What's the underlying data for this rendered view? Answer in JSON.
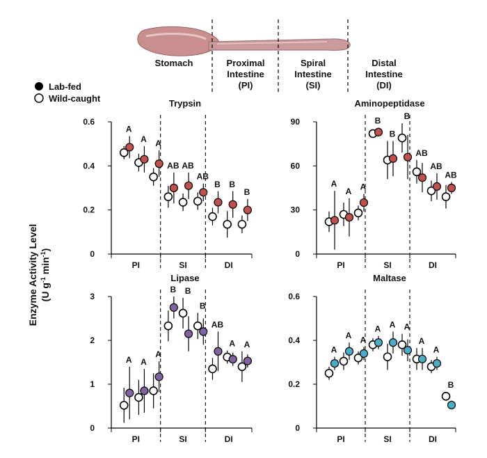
{
  "legend": {
    "lab_fed": "Lab-fed",
    "wild_caught": "Wild-caught"
  },
  "regions": {
    "stomach": "Stomach",
    "pi": [
      "Proximal",
      "Intestine",
      "(PI)"
    ],
    "si": [
      "Spiral",
      "Intestine",
      "(SI)"
    ],
    "di": [
      "Distal",
      "Intestine",
      "(DI)"
    ]
  },
  "ylabel": {
    "line1": "Enzyme Activity Level",
    "line2_main": "(U g",
    "line2_exp1": "-1",
    "line2_mid": " min",
    "line2_exp2": "-1",
    "line2_end": ")"
  },
  "colors": {
    "trypsin": "#c0504d",
    "aminopeptidase": "#c0504d",
    "lipase": "#8064a2",
    "maltase": "#4bacc6",
    "wild": "#ffffff",
    "stroke": "#000000"
  },
  "chart_data": [
    {
      "type": "scatter",
      "title": "Trypsin",
      "groups": [
        "PI",
        "SI",
        "DI"
      ],
      "ylim": [
        0,
        0.6
      ],
      "yticks": [
        "0",
        "0.2",
        "0.4",
        "0.6"
      ],
      "series": [
        {
          "name": "Lab-fed",
          "values": [
            0.485,
            0.43,
            0.41,
            0.3,
            0.31,
            0.28,
            0.235,
            0.225,
            0.2
          ],
          "err": [
            0.05,
            0.06,
            0.06,
            0.07,
            0.06,
            0.04,
            0.05,
            0.06,
            0.05
          ]
        },
        {
          "name": "Wild-caught",
          "values": [
            0.46,
            0.415,
            0.35,
            0.26,
            0.235,
            0.24,
            0.17,
            0.135,
            0.135
          ],
          "err": [
            0.03,
            0.04,
            0.04,
            0.05,
            0.04,
            0.04,
            0.04,
            0.06,
            0.04
          ]
        }
      ],
      "letters": [
        "A",
        "A",
        "A",
        "AB",
        "AB",
        "AB",
        "B",
        "B",
        "B"
      ]
    },
    {
      "type": "scatter",
      "title": "Aminopeptidase",
      "groups": [
        "PI",
        "SI",
        "DI"
      ],
      "ylim": [
        0,
        90
      ],
      "yticks": [
        "0",
        "30",
        "60",
        "90"
      ],
      "series": [
        {
          "name": "Lab-fed",
          "values": [
            23,
            25,
            35,
            83,
            65,
            66,
            52,
            46,
            45
          ],
          "err": [
            20,
            13,
            6,
            3,
            12,
            15,
            10,
            9,
            4
          ]
        },
        {
          "name": "Wild-caught",
          "values": [
            22,
            27,
            28,
            82,
            64,
            79,
            56,
            43,
            39
          ],
          "err": [
            7,
            8,
            5,
            2,
            13,
            10,
            8,
            7,
            8
          ]
        }
      ],
      "letters": [
        "A",
        "A",
        "A",
        "B",
        "B",
        "B",
        "AB",
        "AB",
        "AB"
      ]
    },
    {
      "type": "scatter",
      "title": "Lipase",
      "groups": [
        "PI",
        "SI",
        "DI"
      ],
      "ylim": [
        0,
        3
      ],
      "yticks": [
        "0",
        "1",
        "2",
        "3"
      ],
      "series": [
        {
          "name": "Lab-fed",
          "values": [
            0.8,
            0.85,
            1.17,
            2.75,
            2.15,
            2.2,
            1.75,
            1.57,
            1.53
          ],
          "err": [
            0.6,
            0.5,
            0.35,
            0.25,
            0.4,
            0.3,
            0.45,
            0.15,
            0.15
          ]
        },
        {
          "name": "Wild-caught",
          "values": [
            0.52,
            0.7,
            0.85,
            2.33,
            2.62,
            2.33,
            1.35,
            1.62,
            1.4
          ],
          "err": [
            0.4,
            0.4,
            0.4,
            0.35,
            0.35,
            0.3,
            0.25,
            0.15,
            0.35
          ]
        }
      ],
      "letters": [
        "A",
        "A",
        "A",
        "B",
        "B",
        "B",
        "AB",
        "A",
        "A"
      ]
    },
    {
      "type": "scatter",
      "title": "Maltase",
      "groups": [
        "PI",
        "SI",
        "DI"
      ],
      "ylim": [
        0,
        0.6
      ],
      "yticks": [
        "0",
        "0.2",
        "0.4",
        "0.6"
      ],
      "series": [
        {
          "name": "Lab-fed",
          "values": [
            0.295,
            0.35,
            0.34,
            0.39,
            0.39,
            0.355,
            0.315,
            0.295,
            0.105
          ],
          "err": [
            0.03,
            0.04,
            0.03,
            0.03,
            0.05,
            0.05,
            0.05,
            0.03,
            0.02
          ]
        },
        {
          "name": "Wild-caught",
          "values": [
            0.25,
            0.305,
            0.32,
            0.38,
            0.325,
            0.38,
            0.315,
            0.28,
            0.145
          ],
          "err": [
            0.03,
            0.04,
            0.03,
            0.03,
            0.06,
            0.05,
            0.05,
            0.03,
            0.02
          ]
        }
      ],
      "letters": [
        "A",
        "A",
        "A",
        "A",
        "A",
        "A",
        "A",
        "A",
        "B"
      ]
    }
  ]
}
